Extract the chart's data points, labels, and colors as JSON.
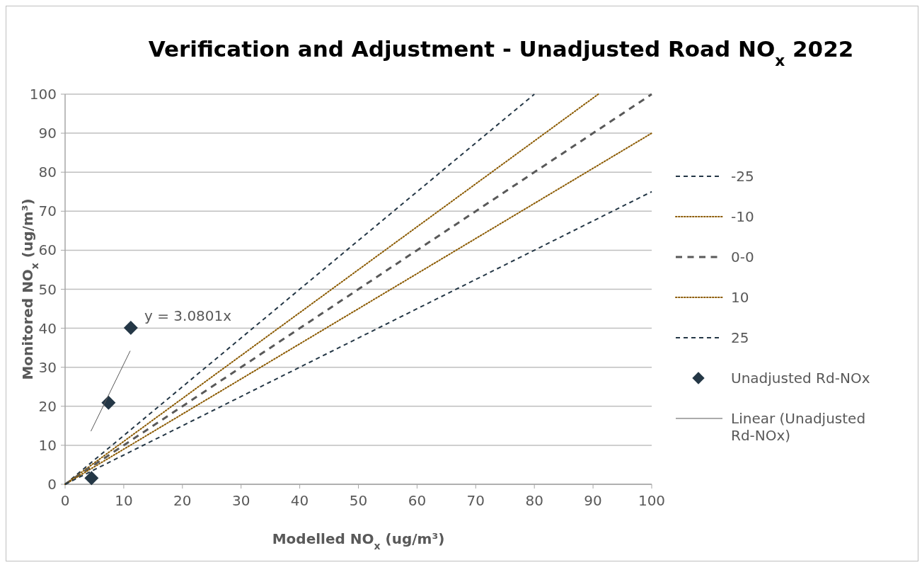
{
  "chart_data": {
    "type": "line",
    "title": "Verification and Adjustment - Unadjusted Road NO$_{x}$ 2022",
    "xlabel": "Modelled NO$_{x}$ (ug/m³)",
    "ylabel": "Monitored NO$_{x}$ (ug/m³)",
    "xlim": [
      0,
      100
    ],
    "ylim": [
      0,
      100
    ],
    "xticks": [
      0,
      10,
      20,
      30,
      40,
      50,
      60,
      70,
      80,
      90,
      100
    ],
    "yticks": [
      0,
      10,
      20,
      30,
      40,
      50,
      60,
      70,
      80,
      90,
      100
    ],
    "grid": "y",
    "legend": "right",
    "annotations": [
      "y = 3.0801x"
    ],
    "series": [
      {
        "name": "-25",
        "color": "#243746",
        "line_style": "dashed",
        "marker": "none",
        "x": [
          0,
          80
        ],
        "values": [
          0,
          100
        ]
      },
      {
        "name": "-10",
        "color": "#8b5a00",
        "line_style": "dotted",
        "marker": "none",
        "x": [
          0,
          90.9
        ],
        "values": [
          0,
          100
        ]
      },
      {
        "name": "0-0",
        "color": "#595959",
        "line_style": "dashed",
        "marker": "none",
        "x": [
          0,
          100
        ],
        "values": [
          0,
          100
        ]
      },
      {
        "name": "10",
        "color": "#8b5a00",
        "line_style": "dotted",
        "marker": "none",
        "x": [
          0,
          100
        ],
        "values": [
          0,
          90
        ]
      },
      {
        "name": "25",
        "color": "#243746",
        "line_style": "dashed",
        "marker": "none",
        "x": [
          0,
          100
        ],
        "values": [
          0,
          75
        ]
      },
      {
        "name": "Unadjusted Rd-NOx",
        "type": "scatter",
        "color": "#243746",
        "marker": "diamond",
        "x": [
          4.5,
          7.4,
          11.2
        ],
        "values": [
          1.6,
          20.9,
          40.1
        ]
      },
      {
        "name": "Linear (Unadjusted Rd-NOx)",
        "color": "#595959",
        "line_style": "solid",
        "marker": "none",
        "x": [
          4.4,
          11.1
        ],
        "values": [
          13.6,
          34.2
        ]
      }
    ]
  }
}
